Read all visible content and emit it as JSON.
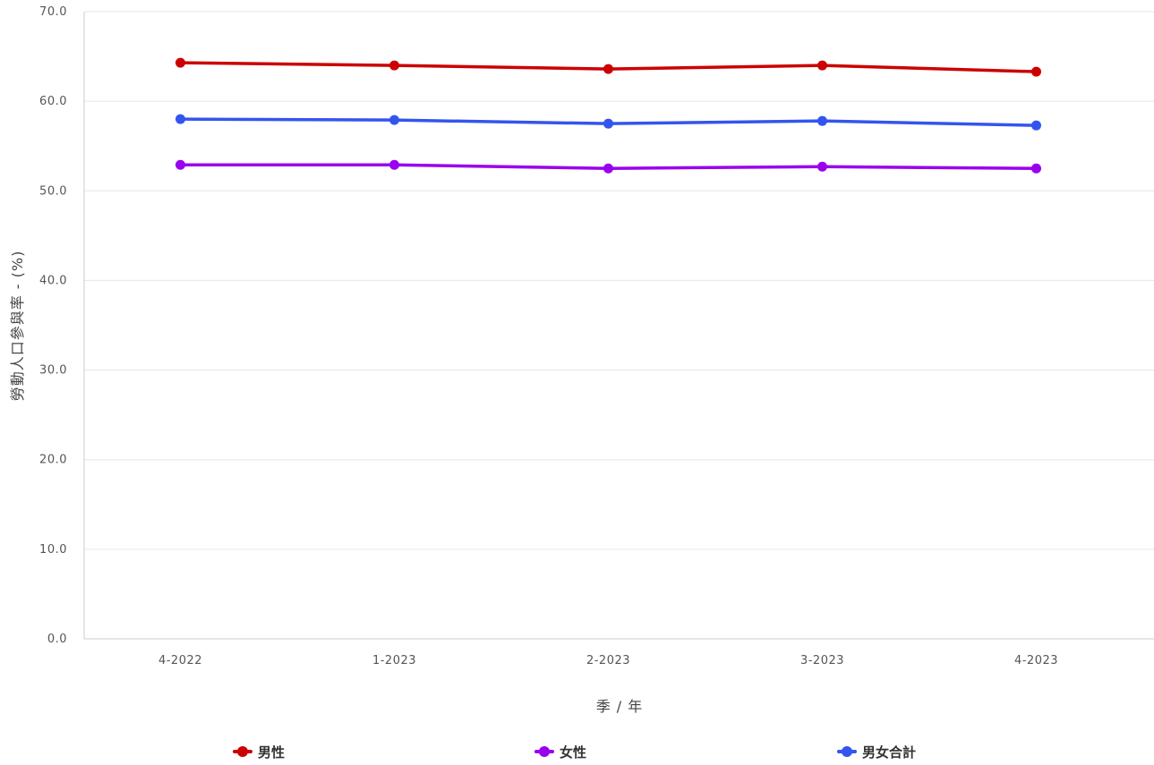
{
  "chart_data": {
    "type": "line",
    "categories": [
      "4-2022",
      "1-2023",
      "2-2023",
      "3-2023",
      "4-2023"
    ],
    "series": [
      {
        "name": "男性",
        "color": "#cc0000",
        "values": [
          64.3,
          64.0,
          63.6,
          64.0,
          63.3
        ]
      },
      {
        "name": "女性",
        "color": "#9900ee",
        "values": [
          52.9,
          52.9,
          52.5,
          52.7,
          52.5
        ]
      },
      {
        "name": "男女合計",
        "color": "#3355ee",
        "values": [
          58.0,
          57.9,
          57.5,
          57.8,
          57.3
        ]
      }
    ],
    "xlabel": "季 / 年",
    "ylabel": "勞動人口參與率 - (%)",
    "ylim": [
      0,
      70
    ],
    "yticks": [
      "0.0",
      "10.0",
      "20.0",
      "30.0",
      "40.0",
      "50.0",
      "60.0",
      "70.0"
    ],
    "grid": true,
    "legend_position": "bottom"
  }
}
